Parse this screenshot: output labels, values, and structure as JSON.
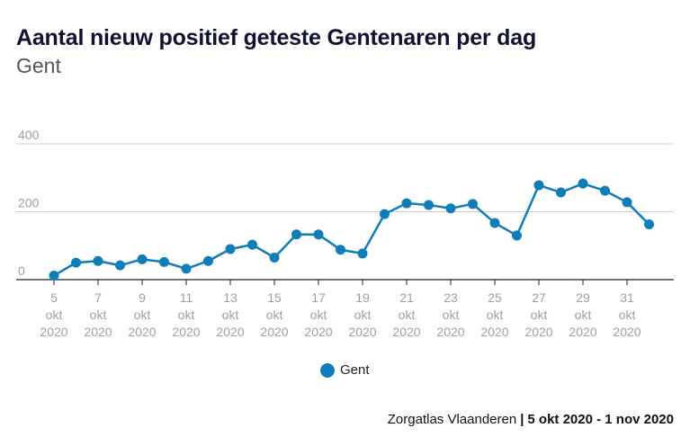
{
  "header": {
    "title": "Aantal nieuw positief geteste Gentenaren per dag",
    "subtitle": "Gent"
  },
  "footer": {
    "source": "Zorgatlas Vlaanderen",
    "separator": "|",
    "range": "5 okt 2020 - 1 nov 2020"
  },
  "colors": {
    "series": "#0e7db8",
    "grid": "#cccccc",
    "axis": "#222222"
  },
  "chart_data": {
    "type": "line",
    "title": "Aantal nieuw positief geteste Gentenaren per dag",
    "subtitle": "Gent",
    "xlabel": "",
    "ylabel": "",
    "ylim": [
      0,
      400
    ],
    "yticks": [
      "0",
      "200",
      "400"
    ],
    "grid": true,
    "legend": "bottom-center",
    "x": [
      "5 okt 2020",
      "6 okt 2020",
      "7 okt 2020",
      "8 okt 2020",
      "9 okt 2020",
      "10 okt 2020",
      "11 okt 2020",
      "12 okt 2020",
      "13 okt 2020",
      "14 okt 2020",
      "15 okt 2020",
      "16 okt 2020",
      "17 okt 2020",
      "18 okt 2020",
      "19 okt 2020",
      "20 okt 2020",
      "21 okt 2020",
      "22 okt 2020",
      "23 okt 2020",
      "24 okt 2020",
      "25 okt 2020",
      "26 okt 2020",
      "27 okt 2020",
      "28 okt 2020",
      "29 okt 2020",
      "30 okt 2020",
      "31 okt 2020",
      "1 nov 2020"
    ],
    "xticks": [
      {
        "day": "5",
        "month": "okt",
        "year": "2020"
      },
      {
        "day": "7",
        "month": "okt",
        "year": "2020"
      },
      {
        "day": "9",
        "month": "okt",
        "year": "2020"
      },
      {
        "day": "11",
        "month": "okt",
        "year": "2020"
      },
      {
        "day": "13",
        "month": "okt",
        "year": "2020"
      },
      {
        "day": "15",
        "month": "okt",
        "year": "2020"
      },
      {
        "day": "17",
        "month": "okt",
        "year": "2020"
      },
      {
        "day": "19",
        "month": "okt",
        "year": "2020"
      },
      {
        "day": "21",
        "month": "okt",
        "year": "2020"
      },
      {
        "day": "23",
        "month": "okt",
        "year": "2020"
      },
      {
        "day": "25",
        "month": "okt",
        "year": "2020"
      },
      {
        "day": "27",
        "month": "okt",
        "year": "2020"
      },
      {
        "day": "29",
        "month": "okt",
        "year": "2020"
      },
      {
        "day": "31",
        "month": "okt",
        "year": "2020"
      }
    ],
    "series": [
      {
        "name": "Gent",
        "values": [
          12,
          50,
          55,
          42,
          60,
          52,
          32,
          55,
          90,
          103,
          65,
          133,
          133,
          88,
          77,
          193,
          225,
          220,
          210,
          223,
          167,
          130,
          278,
          257,
          283,
          262,
          228,
          163
        ]
      }
    ]
  }
}
